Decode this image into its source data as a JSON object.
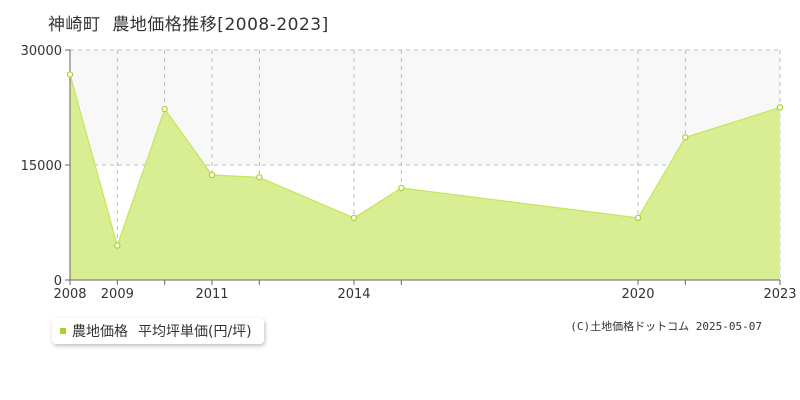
{
  "title": {
    "location": "神崎町",
    "text": "農地価格推移[2008-2023]"
  },
  "legend": {
    "series_label": "農地価格",
    "unit_label": "平均坪単価(円/坪)"
  },
  "credit": "(C)土地価格ドットコム 2025-05-07",
  "colors": {
    "line": "#c5e55a",
    "fill": "#d9ed93",
    "marker": "#a6d22e",
    "band": "#f8f8f8",
    "grid": "#bbbbbb",
    "axis": "#666666"
  },
  "chart_data": {
    "type": "area",
    "x": [
      2008,
      2009,
      2010,
      2011,
      2012,
      2014,
      2015,
      2020,
      2021,
      2023
    ],
    "series": [
      {
        "name": "農地価格",
        "values": [
          26800,
          4500,
          22300,
          13700,
          13400,
          8100,
          12000,
          8100,
          18600,
          22500
        ]
      }
    ],
    "x_tick_labels": [
      "2008",
      "2009",
      "2011",
      "2014",
      "2020",
      "2023"
    ],
    "y_ticks": [
      0,
      15000,
      30000
    ],
    "ylim": [
      0,
      30000
    ],
    "grid": true,
    "legend_position": "bottom-left"
  }
}
